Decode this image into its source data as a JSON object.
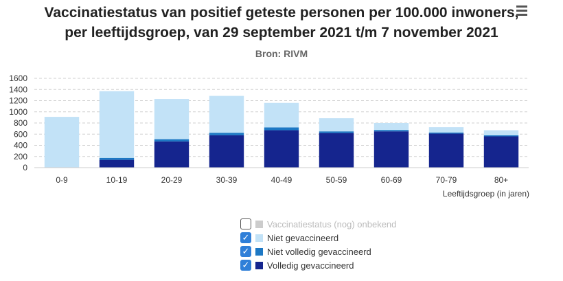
{
  "title_line1": "Vaccinatiestatus van positief geteste personen per 100.000 inwoners,",
  "title_line2": "per leeftijdsgroep, van 29 september 2021 t/m 7 november 2021",
  "subtitle": "Bron: RIVM",
  "menu_icon": "hamburger-menu-icon",
  "chart_data": {
    "type": "bar",
    "stacked": true,
    "categories": [
      "0-9",
      "10-19",
      "20-29",
      "30-39",
      "40-49",
      "50-59",
      "60-69",
      "70-79",
      "80+"
    ],
    "xlabel": "Leeftijdsgroep (in jaren)",
    "ylabel": "",
    "ylim": [
      0,
      1600
    ],
    "yticks": [
      "0",
      "200",
      "400",
      "600",
      "800",
      "1000",
      "1200",
      "1400",
      "1600"
    ],
    "grid": true,
    "legend_position": "bottom-center",
    "series": [
      {
        "name": "Volledig gevaccineerd",
        "color": "#15258e",
        "values": [
          0,
          140,
          470,
          580,
          670,
          620,
          650,
          610,
          560
        ]
      },
      {
        "name": "Niet volledig gevaccineerd",
        "color": "#1d78c4",
        "values": [
          0,
          35,
          40,
          45,
          50,
          30,
          25,
          20,
          20
        ]
      },
      {
        "name": "Niet gevaccineerd",
        "color": "#c2e2f7",
        "values": [
          910,
          1195,
          720,
          660,
          440,
          235,
          125,
          95,
          90
        ]
      }
    ]
  },
  "legend": [
    {
      "label": "Vaccinatiestatus (nog) onbekend",
      "color": "#cccccc",
      "checked": false,
      "disabled": true
    },
    {
      "label": "Niet gevaccineerd",
      "color": "#c2e2f7",
      "checked": true,
      "disabled": false
    },
    {
      "label": "Niet volledig gevaccineerd",
      "color": "#1d78c4",
      "checked": true,
      "disabled": false
    },
    {
      "label": "Volledig gevaccineerd",
      "color": "#15258e",
      "checked": true,
      "disabled": false
    }
  ]
}
